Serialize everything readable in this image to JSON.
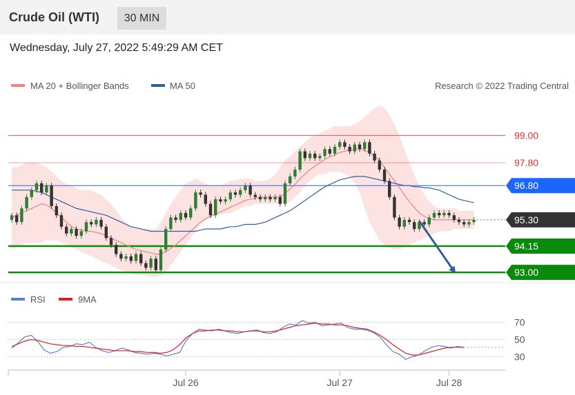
{
  "header": {
    "instrument": "Crude Oil (WTI)",
    "timeframe": "30 MIN"
  },
  "datetime": "Wednesday, July 27, 2022 5:49:29 AM CET",
  "legend": {
    "ma20_label": "MA 20 + Bollinger Bands",
    "ma50_label": "MA 50",
    "credit": "Research © 2022 Trading Central"
  },
  "rsi_legend": {
    "rsi_label": "RSI",
    "ma_label": "9MA"
  },
  "colors": {
    "ma20": "#f08080",
    "band": "#fde2e2",
    "ma50": "#2e5e9e",
    "resistance": "#f05050",
    "pivot": "#1a66ff",
    "support": "#0a8a0a",
    "current": "#333333",
    "up": "#2e7d32",
    "down": "#333333"
  },
  "chart_data": {
    "type": "candlestick",
    "y_range": [
      92.7,
      100.4
    ],
    "levels": [
      {
        "value": 99.0,
        "label": "99.00",
        "kind": "resistance",
        "boxed": false,
        "style": "line"
      },
      {
        "value": 97.8,
        "label": "97.80",
        "kind": "resistance-faint",
        "boxed": false,
        "style": "line"
      },
      {
        "value": 96.8,
        "label": "96.80",
        "kind": "pivot",
        "boxed": true,
        "style": "line"
      },
      {
        "value": 95.3,
        "label": "95.30",
        "kind": "current",
        "boxed": true,
        "style": "dotted"
      },
      {
        "value": 94.15,
        "label": "94.15",
        "kind": "support",
        "boxed": true,
        "style": "line"
      },
      {
        "value": 93.0,
        "label": "93.00",
        "kind": "support",
        "boxed": true,
        "style": "line"
      }
    ],
    "close": [
      95.5,
      95.2,
      95.8,
      96.3,
      96.6,
      96.9,
      96.5,
      96.8,
      95.9,
      95.5,
      95.0,
      94.7,
      94.9,
      94.6,
      94.8,
      95.2,
      95.1,
      95.3,
      95.0,
      94.5,
      94.2,
      93.8,
      93.6,
      93.7,
      93.5,
      93.8,
      93.4,
      93.2,
      93.6,
      93.1,
      94.0,
      94.9,
      95.4,
      95.3,
      95.6,
      95.4,
      95.8,
      96.5,
      96.4,
      96.0,
      95.5,
      96.2,
      96.1,
      96.2,
      96.5,
      96.4,
      96.6,
      96.8,
      96.4,
      96.3,
      96.2,
      96.3,
      96.2,
      96.3,
      96.0,
      96.9,
      97.2,
      97.5,
      98.3,
      98.0,
      98.2,
      98.0,
      98.1,
      98.4,
      98.2,
      98.5,
      98.7,
      98.5,
      98.3,
      98.6,
      98.4,
      98.7,
      98.2,
      97.9,
      97.5,
      97.0,
      96.3,
      95.4,
      95.0,
      95.3,
      95.2,
      94.9,
      95.2,
      95.1,
      95.4,
      95.6,
      95.5,
      95.6,
      95.5,
      95.3,
      95.2,
      95.1,
      95.2,
      95.3
    ],
    "ma20": [
      95.4,
      95.5,
      95.6,
      95.7,
      95.8,
      95.9,
      96.0,
      95.95,
      95.8,
      95.6,
      95.4,
      95.2,
      95.0,
      94.9,
      94.85,
      94.8,
      94.8,
      94.75,
      94.7,
      94.6,
      94.5,
      94.4,
      94.3,
      94.2,
      94.1,
      94.0,
      93.95,
      93.9,
      93.85,
      93.8,
      93.8,
      93.9,
      94.05,
      94.2,
      94.4,
      94.6,
      94.8,
      95.0,
      95.2,
      95.35,
      95.45,
      95.55,
      95.65,
      95.75,
      95.85,
      95.95,
      96.05,
      96.15,
      96.2,
      96.25,
      96.3,
      96.3,
      96.3,
      96.3,
      96.3,
      96.45,
      96.65,
      96.85,
      97.1,
      97.3,
      97.5,
      97.65,
      97.8,
      97.95,
      98.05,
      98.15,
      98.25,
      98.3,
      98.35,
      98.4,
      98.4,
      98.35,
      98.25,
      98.1,
      97.9,
      97.6,
      97.3,
      97.0,
      96.7,
      96.4,
      96.1,
      95.85,
      95.6,
      95.45,
      95.35,
      95.3,
      95.3,
      95.3,
      95.3,
      95.3,
      95.3,
      95.3,
      95.3,
      95.3
    ],
    "band_upper": [
      97.6,
      97.6,
      97.7,
      97.8,
      97.8,
      97.8,
      97.7,
      97.6,
      97.4,
      97.2,
      97.0,
      96.9,
      96.8,
      96.7,
      96.6,
      96.6,
      96.6,
      96.5,
      96.4,
      96.2,
      96.0,
      95.7,
      95.4,
      95.2,
      95.0,
      94.9,
      94.9,
      94.9,
      94.9,
      94.9,
      95.2,
      95.6,
      96.0,
      96.3,
      96.6,
      96.9,
      97.0,
      97.1,
      97.0,
      96.9,
      96.8,
      96.8,
      96.8,
      96.9,
      97.0,
      97.0,
      97.1,
      97.1,
      97.1,
      97.0,
      97.0,
      97.0,
      97.1,
      97.3,
      97.6,
      97.9,
      98.1,
      98.3,
      98.5,
      98.7,
      98.9,
      99.0,
      99.1,
      99.2,
      99.3,
      99.4,
      99.4,
      99.4,
      99.4,
      99.5,
      99.6,
      99.8,
      100.0,
      100.2,
      100.3,
      100.2,
      99.9,
      99.5,
      99.0,
      98.4,
      97.8,
      97.3,
      96.8,
      96.4,
      96.1,
      95.9,
      95.8,
      95.8,
      95.8,
      95.8,
      95.7,
      95.7,
      95.7,
      95.7
    ],
    "band_lower": [
      94.0,
      94.1,
      94.2,
      94.3,
      94.3,
      94.3,
      94.3,
      94.4,
      94.4,
      94.4,
      94.3,
      94.2,
      94.1,
      94.0,
      93.9,
      93.8,
      93.7,
      93.6,
      93.5,
      93.4,
      93.3,
      93.2,
      93.1,
      93.0,
      92.95,
      92.9,
      92.9,
      92.85,
      92.8,
      92.8,
      92.85,
      93.0,
      93.3,
      93.6,
      93.9,
      94.2,
      94.5,
      94.8,
      95.1,
      95.3,
      95.4,
      95.5,
      95.5,
      95.6,
      95.6,
      95.7,
      95.8,
      95.9,
      95.9,
      96.0,
      96.0,
      96.0,
      96.0,
      96.0,
      96.0,
      96.0,
      96.1,
      96.3,
      96.5,
      96.8,
      97.0,
      97.2,
      97.3,
      97.3,
      97.4,
      97.4,
      97.4,
      97.3,
      97.2,
      96.9,
      96.5,
      95.8,
      95.2,
      94.8,
      94.4,
      94.2,
      94.1,
      94.0,
      94.0,
      94.1,
      94.2,
      94.3,
      94.4,
      94.5,
      94.6,
      94.7,
      94.8,
      94.8,
      94.8,
      94.9,
      94.9,
      94.9,
      94.9,
      94.9
    ],
    "ma50": [
      96.6,
      96.6,
      96.6,
      96.6,
      96.6,
      96.55,
      96.5,
      96.4,
      96.3,
      96.2,
      96.1,
      96.0,
      95.9,
      95.8,
      95.75,
      95.7,
      95.65,
      95.6,
      95.55,
      95.5,
      95.4,
      95.3,
      95.2,
      95.1,
      95.0,
      94.95,
      94.9,
      94.85,
      94.8,
      94.8,
      94.8,
      94.8,
      94.8,
      94.8,
      94.8,
      94.8,
      94.8,
      94.8,
      94.85,
      94.9,
      94.9,
      94.9,
      94.9,
      94.95,
      95.0,
      95.0,
      95.05,
      95.1,
      95.1,
      95.1,
      95.15,
      95.2,
      95.3,
      95.4,
      95.5,
      95.6,
      95.7,
      95.85,
      96.0,
      96.15,
      96.3,
      96.45,
      96.6,
      96.75,
      96.85,
      96.95,
      97.05,
      97.1,
      97.15,
      97.2,
      97.2,
      97.2,
      97.15,
      97.1,
      97.05,
      97.0,
      96.95,
      96.9,
      96.85,
      96.8,
      96.8,
      96.75,
      96.75,
      96.7,
      96.7,
      96.65,
      96.6,
      96.5,
      96.4,
      96.3,
      96.2,
      96.15,
      96.1,
      96.05
    ],
    "x_ticks": [
      {
        "label": "Jul 26",
        "index": 35
      },
      {
        "label": "Jul 27",
        "index": 66
      },
      {
        "label": "Jul 28",
        "index": 88
      }
    ],
    "arrow": {
      "from": {
        "index": 82,
        "value": 95.25
      },
      "to": {
        "index": 89,
        "value": 93.05
      }
    },
    "rsi": {
      "y_range": [
        20,
        80
      ],
      "ticks": [
        70,
        50,
        30
      ],
      "rsi_values": [
        40,
        46,
        53,
        55,
        48,
        38,
        34,
        36,
        41,
        42,
        45,
        44,
        47,
        41,
        37,
        35,
        37,
        40,
        38,
        35,
        34,
        33,
        34,
        33,
        31,
        33,
        35,
        49,
        57,
        62,
        61,
        60,
        62,
        60,
        58,
        57,
        59,
        60,
        61,
        58,
        57,
        59,
        64,
        68,
        67,
        72,
        69,
        70,
        66,
        67,
        68,
        69,
        64,
        62,
        62,
        61,
        58,
        53,
        44,
        36,
        33,
        27,
        30,
        32,
        37,
        41,
        43,
        42,
        40,
        42,
        41
      ],
      "ma_values": [
        42,
        45,
        48,
        50,
        49,
        47,
        45,
        44,
        43,
        43,
        42,
        42,
        41,
        40,
        39,
        38,
        37,
        37,
        37,
        36,
        36,
        35,
        35,
        34,
        35,
        38,
        44,
        52,
        57,
        60,
        60,
        61,
        61,
        60,
        60,
        59,
        59,
        60,
        60,
        59,
        59,
        60,
        62,
        64,
        66,
        67,
        68,
        69,
        68,
        68,
        67,
        67,
        66,
        64,
        63,
        62,
        59,
        55,
        50,
        44,
        39,
        34,
        32,
        32,
        34,
        36,
        38,
        40,
        41,
        41,
        41
      ]
    }
  }
}
